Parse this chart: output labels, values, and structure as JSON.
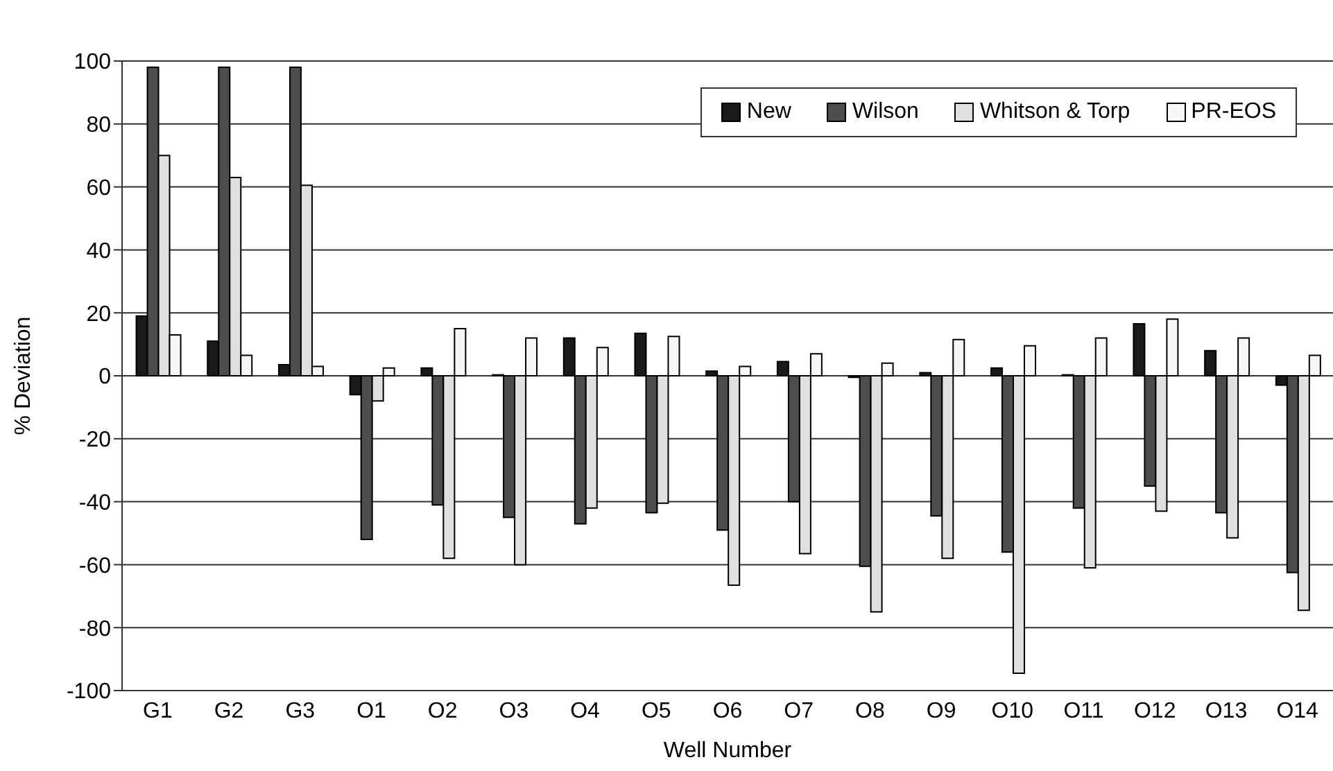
{
  "chart_data": {
    "type": "bar",
    "xlabel": "Well Number",
    "ylabel": "% Deviation",
    "categories": [
      "G1",
      "G2",
      "G3",
      "O1",
      "O2",
      "O3",
      "O4",
      "O5",
      "O6",
      "O7",
      "O8",
      "O9",
      "O10",
      "O11",
      "O12",
      "O13",
      "O14"
    ],
    "series": [
      {
        "name": "New",
        "color": "#1a1a1a",
        "values": [
          19,
          11,
          3.5,
          -6,
          2.5,
          0.3,
          12,
          13.5,
          1.5,
          4.5,
          -0.5,
          1,
          2.5,
          0.3,
          16.5,
          8,
          -3
        ]
      },
      {
        "name": "Wilson",
        "color": "#4d4d4d",
        "values": [
          98,
          98,
          98,
          -52,
          -41,
          -45,
          -47,
          -43.5,
          -49,
          -40,
          -60.5,
          -44.5,
          -56,
          -42,
          -35,
          -43.5,
          -62.5
        ]
      },
      {
        "name": "Whitson & Torp",
        "color": "#e0e0e0",
        "values": [
          70,
          63,
          60.5,
          -8,
          -58,
          -60,
          -42,
          -40.5,
          -66.5,
          -56.5,
          -75,
          -58,
          -94.5,
          -61,
          -43,
          -51.5,
          -74.5
        ]
      },
      {
        "name": "PR-EOS",
        "color": "#f7f7f7",
        "values": [
          13,
          6.5,
          3,
          2.5,
          15,
          12,
          9,
          12.5,
          3,
          7,
          4,
          11.5,
          9.5,
          12,
          18,
          12,
          6.5
        ]
      }
    ],
    "ylim": [
      -100,
      100
    ],
    "yticks": [
      -100,
      -80,
      -60,
      -40,
      -20,
      0,
      20,
      40,
      60,
      80,
      100
    ],
    "grid": "y",
    "legend": "top right"
  }
}
